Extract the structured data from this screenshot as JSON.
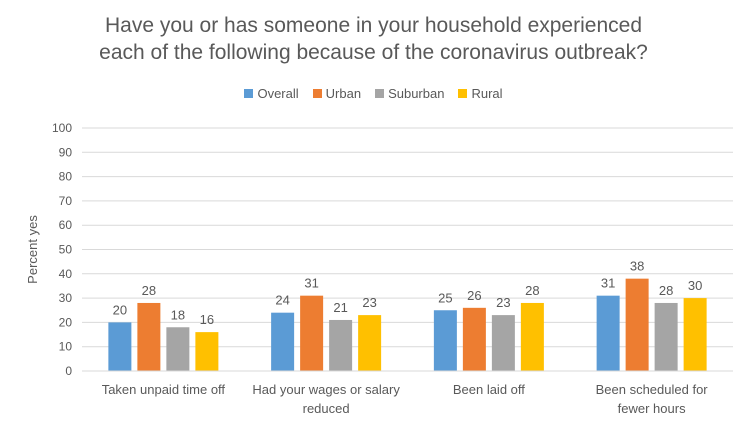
{
  "chart_data": {
    "type": "bar",
    "title_lines": [
      "Have you or has someone in your household experienced",
      "each of the following because of the coronavirus outbreak?"
    ],
    "ylabel": "Percent yes",
    "xlabel": "",
    "ylim": [
      0,
      100
    ],
    "yticks": [
      0,
      10,
      20,
      30,
      40,
      50,
      60,
      70,
      80,
      90,
      100
    ],
    "grid": true,
    "legend_position": "top",
    "categories": [
      [
        "Taken unpaid time off"
      ],
      [
        "Had your wages or salary",
        "reduced"
      ],
      [
        "Been laid off"
      ],
      [
        "Been scheduled for",
        "fewer hours"
      ]
    ],
    "series": [
      {
        "name": "Overall",
        "color": "#5B9BD5",
        "values": [
          20,
          24,
          25,
          31
        ]
      },
      {
        "name": "Urban",
        "color": "#ED7D31",
        "values": [
          28,
          31,
          26,
          38
        ]
      },
      {
        "name": "Suburban",
        "color": "#A5A5A5",
        "values": [
          18,
          21,
          23,
          28
        ]
      },
      {
        "name": "Rural",
        "color": "#FFC000",
        "values": [
          16,
          23,
          28,
          30
        ]
      }
    ]
  }
}
